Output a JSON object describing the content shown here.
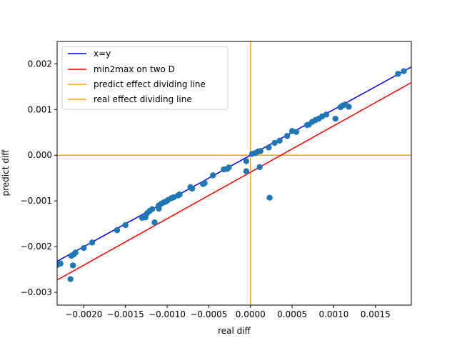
{
  "chart_data": {
    "type": "scatter",
    "xlabel": "real diff",
    "ylabel": "predict diff",
    "xlim": [
      -0.00232,
      0.00193
    ],
    "ylim": [
      -0.00328,
      0.00249
    ],
    "xticks": [
      {
        "value": -0.002,
        "label": "−0.0020"
      },
      {
        "value": -0.0015,
        "label": "−0.0015"
      },
      {
        "value": -0.001,
        "label": "−0.0010"
      },
      {
        "value": -0.0005,
        "label": "−0.0005"
      },
      {
        "value": 0.0,
        "label": "0.0000"
      },
      {
        "value": 0.0005,
        "label": "0.0005"
      },
      {
        "value": 0.001,
        "label": "0.0010"
      },
      {
        "value": 0.0015,
        "label": "0.0015"
      }
    ],
    "yticks": [
      {
        "value": -0.003,
        "label": "−0.003"
      },
      {
        "value": -0.002,
        "label": "−0.002"
      },
      {
        "value": -0.001,
        "label": "−0.001"
      },
      {
        "value": 0.0,
        "label": "0.000"
      },
      {
        "value": 0.001,
        "label": "0.001"
      },
      {
        "value": 0.002,
        "label": "0.002"
      }
    ],
    "grid": false,
    "legend_position": "upper-left",
    "lines": [
      {
        "name": "x=y",
        "color": "#0000ff",
        "kind": "line",
        "x": [
          -0.00232,
          0.00193
        ],
        "y": [
          -0.00232,
          0.00193
        ]
      },
      {
        "name": "min2max on two D",
        "color": "#ff0000",
        "kind": "line",
        "x": [
          -0.00232,
          0.00193
        ],
        "y": [
          -0.00273,
          0.00159
        ]
      },
      {
        "name": "predict effect dividing line",
        "color": "#ffa500",
        "kind": "hline",
        "y": 0.0
      },
      {
        "name": "real effect dividing line",
        "color": "#ffa500",
        "kind": "vline",
        "x": 0.0
      }
    ],
    "scatter": {
      "color": "#1f77b4",
      "points": [
        [
          -0.00232,
          -0.0024
        ],
        [
          -0.00228,
          -0.00237
        ],
        [
          -0.00215,
          -0.0022
        ],
        [
          -0.00212,
          -0.00217
        ],
        [
          -0.0021,
          -0.00213
        ],
        [
          -0.00213,
          -0.00241
        ],
        [
          -0.00216,
          -0.00271
        ],
        [
          -0.002,
          -0.00203
        ],
        [
          -0.0019,
          -0.00191
        ],
        [
          -0.0016,
          -0.00164
        ],
        [
          -0.0015,
          -0.00153
        ],
        [
          -0.0013,
          -0.00137
        ],
        [
          -0.00126,
          -0.00136
        ],
        [
          -0.00124,
          -0.00127
        ],
        [
          -0.00121,
          -0.00122
        ],
        [
          -0.00118,
          -0.00118
        ],
        [
          -0.00115,
          -0.00147
        ],
        [
          -0.0011,
          -0.00117
        ],
        [
          -0.0011,
          -0.0011
        ],
        [
          -0.00107,
          -0.00106
        ],
        [
          -0.00104,
          -0.00103
        ],
        [
          -0.00101,
          -0.00101
        ],
        [
          -0.00099,
          -0.00098
        ],
        [
          -0.00095,
          -0.00094
        ],
        [
          -0.00092,
          -0.00092
        ],
        [
          -0.00087,
          -0.00088
        ],
        [
          -0.00085,
          -0.00086
        ],
        [
          -0.00072,
          -0.0007
        ],
        [
          -0.0007,
          -0.00073
        ],
        [
          -0.00057,
          -0.00063
        ],
        [
          -0.00055,
          -0.00061
        ],
        [
          -0.00045,
          -0.00044
        ],
        [
          -0.00032,
          -0.00031
        ],
        [
          -0.00028,
          -0.0003
        ],
        [
          -0.00026,
          -0.00027
        ],
        [
          -5e-05,
          -0.00013
        ],
        [
          -5e-05,
          -0.00035
        ],
        [
          2e-05,
          3e-05
        ],
        [
          6e-05,
          5e-05
        ],
        [
          9e-05,
          8e-05
        ],
        [
          0.00012,
          9e-05
        ],
        [
          0.00011,
          -0.00026
        ],
        [
          0.00023,
          -0.00093
        ],
        [
          0.00022,
          0.00017
        ],
        [
          0.00029,
          0.00027
        ],
        [
          0.00035,
          0.00032
        ],
        [
          0.00044,
          0.00042
        ],
        [
          0.0005,
          0.00053
        ],
        [
          0.00055,
          0.00051
        ],
        [
          0.00068,
          0.00066
        ],
        [
          0.0007,
          0.00067
        ],
        [
          0.00074,
          0.00073
        ],
        [
          0.00078,
          0.00077
        ],
        [
          0.00082,
          0.0008
        ],
        [
          0.00086,
          0.00085
        ],
        [
          0.00091,
          0.00089
        ],
        [
          0.00102,
          0.0008
        ],
        [
          0.00108,
          0.00105
        ],
        [
          0.00111,
          0.00109
        ],
        [
          0.00114,
          0.00111
        ],
        [
          0.00118,
          0.00106
        ],
        [
          0.00177,
          0.00178
        ],
        [
          0.00184,
          0.00184
        ]
      ]
    }
  }
}
